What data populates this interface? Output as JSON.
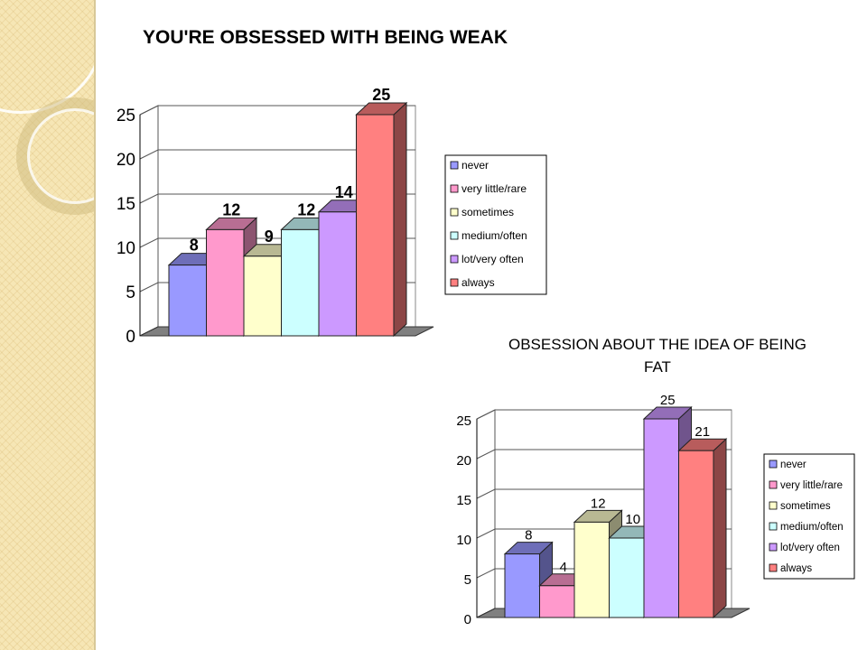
{
  "chart_data": [
    {
      "type": "bar",
      "title": "YOU'RE OBSESSED WITH BEING WEAK",
      "categories": [
        "never",
        "very little/rare",
        "sometimes",
        "medium/often",
        "lot/very often",
        "always"
      ],
      "values": [
        8,
        12,
        9,
        12,
        14,
        25
      ],
      "ylim": [
        0,
        25
      ],
      "yticks": [
        0,
        5,
        10,
        15,
        20,
        25
      ],
      "grid": true,
      "legend": "right",
      "colors": [
        "#9999ff",
        "#ff99cc",
        "#ffffcc",
        "#ccffff",
        "#cc99ff",
        "#ff8080"
      ]
    },
    {
      "type": "bar",
      "title": "OBSESSION ABOUT THE IDEA OF BEING FAT",
      "categories": [
        "never",
        "very little/rare",
        "sometimes",
        "medium/often",
        "lot/very often",
        "always"
      ],
      "values": [
        8,
        4,
        12,
        10,
        25,
        21
      ],
      "ylim": [
        0,
        25
      ],
      "yticks": [
        0,
        5,
        10,
        15,
        20,
        25
      ],
      "grid": true,
      "legend": "right",
      "colors": [
        "#9999ff",
        "#ff99cc",
        "#ffffcc",
        "#ccffff",
        "#cc99ff",
        "#ff8080"
      ]
    }
  ]
}
